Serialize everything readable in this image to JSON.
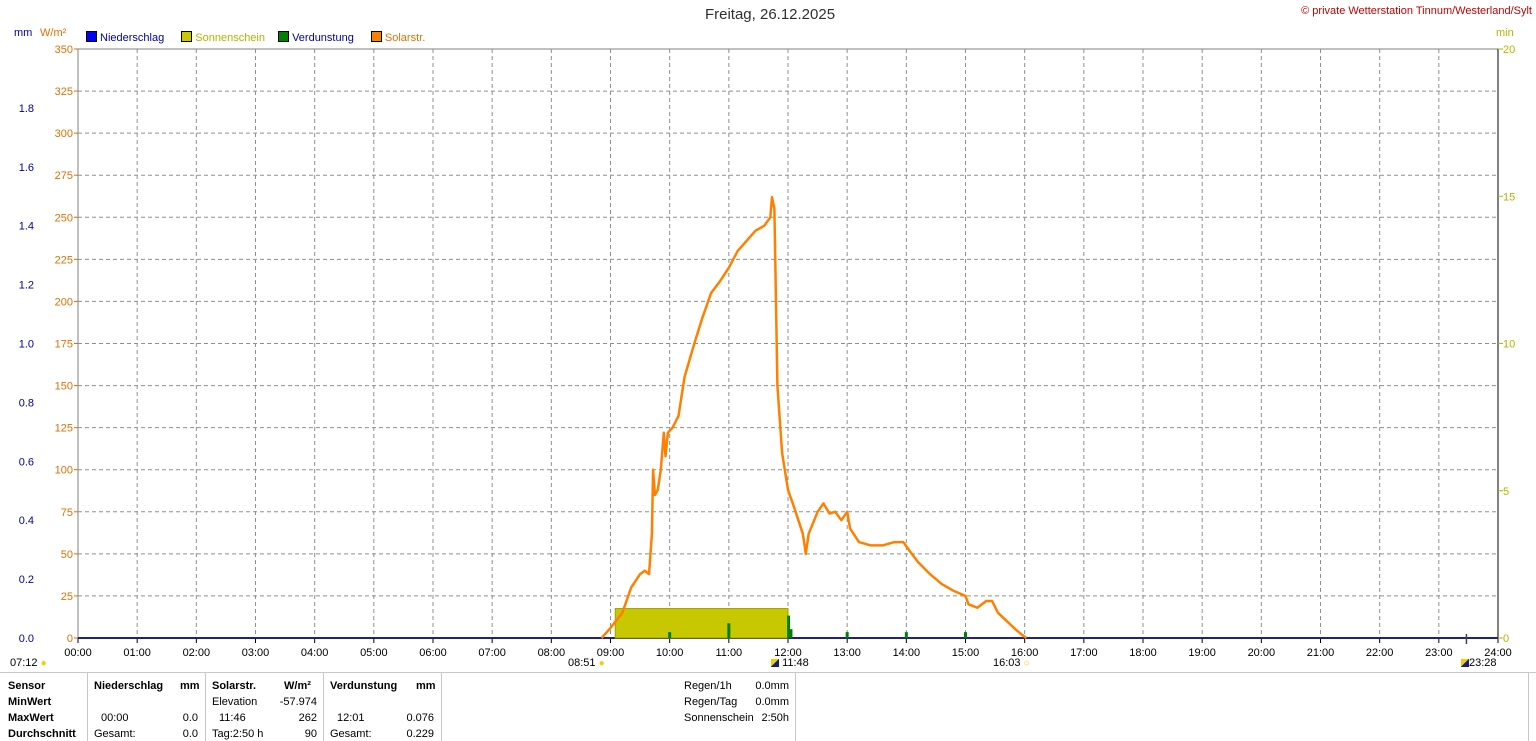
{
  "title": "Freitag, 26.12.2025",
  "copyright": "© private Wetterstation Tinnum/Westerland/Sylt",
  "unit_labels": {
    "mm": "mm",
    "wm2": "W/m²",
    "min": "min"
  },
  "legend": [
    {
      "label": "Niederschlag",
      "color": "#0000ff",
      "text_color": "#0000a0"
    },
    {
      "label": "Sonnenschein",
      "color": "#c8c800",
      "text_color": "#b4b400"
    },
    {
      "label": "Verdunstung",
      "color": "#008000",
      "text_color": "#0000a0"
    },
    {
      "label": "Solarstr.",
      "color": "#ff8000",
      "text_color": "#e07000"
    }
  ],
  "markers": {
    "sunrise": "07:12",
    "solar_start": "08:51",
    "solar_peak": "11:48",
    "solar_end": "16:03",
    "sunset": "23:28"
  },
  "chart_data": {
    "type": "line",
    "x_ticks": [
      "00:00",
      "01:00",
      "02:00",
      "03:00",
      "04:00",
      "05:00",
      "06:00",
      "07:00",
      "08:00",
      "09:00",
      "10:00",
      "11:00",
      "12:00",
      "13:00",
      "14:00",
      "15:00",
      "16:00",
      "17:00",
      "18:00",
      "19:00",
      "20:00",
      "21:00",
      "22:00",
      "23:00",
      "24:00"
    ],
    "y_left_mm_ticks": [
      "0.0",
      "0.2",
      "0.4",
      "0.6",
      "0.8",
      "1.0",
      "1.2",
      "1.4",
      "1.6",
      "1.8"
    ],
    "y_left_mm_range": [
      0,
      2.0
    ],
    "y_left_wm2_ticks": [
      "0",
      "25",
      "50",
      "75",
      "100",
      "125",
      "150",
      "175",
      "200",
      "225",
      "250",
      "275",
      "300",
      "325",
      "350"
    ],
    "y_left_wm2_range": [
      0,
      350
    ],
    "y_right_min_ticks": [
      "0",
      "5",
      "10",
      "15",
      "20"
    ],
    "y_right_min_range": [
      0,
      20
    ],
    "grid": true,
    "series": [
      {
        "name": "Solarstr.",
        "axis": "wm2",
        "color": "#ff8000",
        "points": [
          [
            8.85,
            0
          ],
          [
            9.0,
            6
          ],
          [
            9.2,
            15
          ],
          [
            9.35,
            30
          ],
          [
            9.5,
            38
          ],
          [
            9.58,
            40
          ],
          [
            9.65,
            38
          ],
          [
            9.7,
            62
          ],
          [
            9.72,
            100
          ],
          [
            9.75,
            85
          ],
          [
            9.8,
            88
          ],
          [
            9.85,
            100
          ],
          [
            9.9,
            122
          ],
          [
            9.93,
            108
          ],
          [
            9.97,
            122
          ],
          [
            10.05,
            125
          ],
          [
            10.15,
            132
          ],
          [
            10.25,
            155
          ],
          [
            10.4,
            173
          ],
          [
            10.55,
            190
          ],
          [
            10.7,
            205
          ],
          [
            10.85,
            212
          ],
          [
            11.0,
            220
          ],
          [
            11.15,
            230
          ],
          [
            11.3,
            236
          ],
          [
            11.45,
            242
          ],
          [
            11.6,
            245
          ],
          [
            11.7,
            250
          ],
          [
            11.73,
            262
          ],
          [
            11.77,
            255
          ],
          [
            11.82,
            150
          ],
          [
            11.9,
            110
          ],
          [
            12.0,
            88
          ],
          [
            12.1,
            78
          ],
          [
            12.25,
            62
          ],
          [
            12.28,
            55
          ],
          [
            12.3,
            50
          ],
          [
            12.35,
            62
          ],
          [
            12.5,
            75
          ],
          [
            12.6,
            80
          ],
          [
            12.7,
            74
          ],
          [
            12.8,
            75
          ],
          [
            12.9,
            70
          ],
          [
            13.0,
            75
          ],
          [
            13.05,
            65
          ],
          [
            13.2,
            57
          ],
          [
            13.4,
            55
          ],
          [
            13.6,
            55
          ],
          [
            13.8,
            57
          ],
          [
            13.95,
            57
          ],
          [
            14.05,
            52
          ],
          [
            14.2,
            45
          ],
          [
            14.4,
            38
          ],
          [
            14.6,
            32
          ],
          [
            14.8,
            28
          ],
          [
            15.0,
            25
          ],
          [
            15.05,
            20
          ],
          [
            15.2,
            18
          ],
          [
            15.35,
            22
          ],
          [
            15.45,
            22
          ],
          [
            15.55,
            15
          ],
          [
            15.7,
            10
          ],
          [
            15.85,
            5
          ],
          [
            15.95,
            2
          ],
          [
            16.03,
            0
          ]
        ]
      },
      {
        "name": "Sonnenschein",
        "axis": "min",
        "color": "#c8c800",
        "bars": [
          {
            "from": 9.08,
            "to": 12.0,
            "value": 1.0
          }
        ]
      },
      {
        "name": "Verdunstung",
        "axis": "mm",
        "color": "#008000",
        "bars": [
          [
            10.0,
            0.02
          ],
          [
            11.0,
            0.05
          ],
          [
            12.01,
            0.076
          ],
          [
            12.05,
            0.03
          ],
          [
            13.0,
            0.02
          ],
          [
            14.0,
            0.02
          ],
          [
            15.0,
            0.02
          ]
        ]
      }
    ]
  },
  "stats": {
    "col1": {
      "header": "Sensor",
      "rows": [
        "MinWert",
        "MaxWert",
        "Durchschnitt"
      ]
    },
    "niederschlag": {
      "header": "Niederschlag",
      "unit": "mm",
      "max_time": "00:00",
      "max_val": "0.0",
      "avg_label": "Gesamt:",
      "avg_val": "0.0"
    },
    "solar": {
      "header": "Solarstr.",
      "unit": "W/m²",
      "min_label": "Elevation",
      "min_val": "-57.974",
      "max_time": "11:46",
      "max_val": "262",
      "avg_label": "Tag:2:50 h",
      "avg_val": "90"
    },
    "verdunstung": {
      "header": "Verdunstung",
      "unit": "mm",
      "max_time": "12:01",
      "max_val": "0.076",
      "avg_label": "Gesamt:",
      "avg_val": "0.229"
    },
    "summary": [
      {
        "label": "Regen/1h",
        "value": "0.0mm"
      },
      {
        "label": "Regen/Tag",
        "value": "0.0mm"
      },
      {
        "label": "Sonnenschein",
        "value": "2:50h"
      }
    ]
  }
}
